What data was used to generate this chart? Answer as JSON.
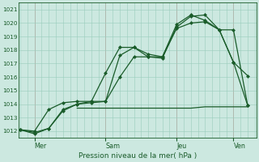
{
  "xlabel": "Pression niveau de la mer( hPa )",
  "bg_color": "#cce8e0",
  "grid_color": "#99ccbb",
  "line_color": "#1a5c2a",
  "vline_color": "#cc9999",
  "ylim": [
    1011.5,
    1021.5
  ],
  "xlim": [
    -0.05,
    8.3
  ],
  "yticks": [
    1012,
    1013,
    1014,
    1015,
    1016,
    1017,
    1018,
    1019,
    1020,
    1021
  ],
  "day_labels": [
    "Mer",
    "Sam",
    "Jeu",
    "Ven"
  ],
  "day_positions": [
    0.5,
    3.0,
    5.5,
    7.5
  ],
  "series1": {
    "x": [
      0,
      0.5,
      1.0,
      1.5,
      2.0,
      2.5,
      3.0,
      3.5,
      4.0,
      4.5,
      5.0,
      5.5,
      6.0,
      6.5,
      7.0,
      7.5,
      8.0
    ],
    "y": [
      1012.1,
      1011.8,
      1012.2,
      1013.6,
      1014.0,
      1014.2,
      1014.2,
      1017.6,
      1018.2,
      1017.5,
      1017.4,
      1019.7,
      1020.5,
      1020.6,
      1019.5,
      1017.1,
      1013.9
    ]
  },
  "series2": {
    "x": [
      0,
      0.5,
      1.0,
      1.5,
      2.0,
      2.5,
      3.0,
      3.5,
      4.0,
      4.5,
      5.0,
      5.5,
      6.0,
      6.5,
      7.0,
      7.5,
      8.0
    ],
    "y": [
      1012.1,
      1012.0,
      1013.6,
      1014.1,
      1014.2,
      1014.2,
      1016.3,
      1018.2,
      1018.2,
      1017.7,
      1017.5,
      1019.9,
      1020.6,
      1020.2,
      1019.5,
      1019.5,
      1013.9
    ]
  },
  "series3": {
    "x": [
      0,
      0.5,
      1.0,
      1.5,
      2.0,
      2.5,
      3.0,
      3.5,
      4.0,
      4.5,
      5.0,
      5.5,
      6.0,
      6.5,
      7.0,
      7.5,
      8.0
    ],
    "y": [
      1012.1,
      1011.9,
      1012.2,
      1013.5,
      1014.0,
      1014.1,
      1014.2,
      1016.0,
      1017.5,
      1017.5,
      1017.5,
      1019.6,
      1020.0,
      1020.1,
      1019.5,
      1017.1,
      1016.1
    ]
  },
  "series_flat": {
    "x": [
      2.0,
      2.5,
      3.0,
      3.5,
      4.0,
      4.5,
      5.0,
      5.5,
      6.0,
      6.5,
      7.0,
      7.5,
      8.0
    ],
    "y": [
      1013.7,
      1013.7,
      1013.7,
      1013.7,
      1013.7,
      1013.7,
      1013.7,
      1013.7,
      1013.7,
      1013.8,
      1013.8,
      1013.8,
      1013.8
    ]
  },
  "marker_size": 2.5,
  "linewidth": 0.9
}
